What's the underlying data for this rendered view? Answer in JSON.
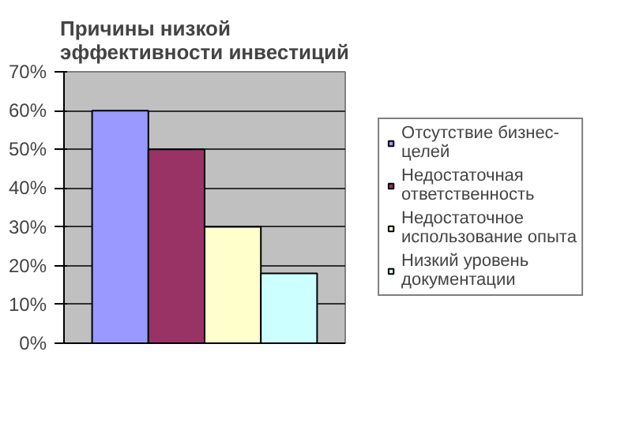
{
  "chart_data": {
    "type": "bar",
    "title": "Причины низкой эффективности инвестиций",
    "categories": [
      null
    ],
    "series": [
      {
        "name": "Отсутствие бизнес-целей",
        "color": "#9999ff",
        "values": [
          60
        ]
      },
      {
        "name": "Недостаточная ответственность",
        "color": "#993366",
        "values": [
          50
        ]
      },
      {
        "name": "Недостаточное использование опыта",
        "color": "#ffffcc",
        "values": [
          30
        ]
      },
      {
        "name": "Низкий уровень документации",
        "color": "#ccffff",
        "values": [
          18
        ]
      }
    ],
    "ylim": [
      0,
      70
    ],
    "yticks": [
      {
        "value": 0,
        "label": "0%"
      },
      {
        "value": 10,
        "label": "10%"
      },
      {
        "value": 20,
        "label": "20%"
      },
      {
        "value": 30,
        "label": "30%"
      },
      {
        "value": 40,
        "label": "40%"
      },
      {
        "value": 50,
        "label": "50%"
      },
      {
        "value": 60,
        "label": "60%"
      },
      {
        "value": 70,
        "label": "70%"
      }
    ],
    "grid": "y",
    "legend": "right"
  }
}
